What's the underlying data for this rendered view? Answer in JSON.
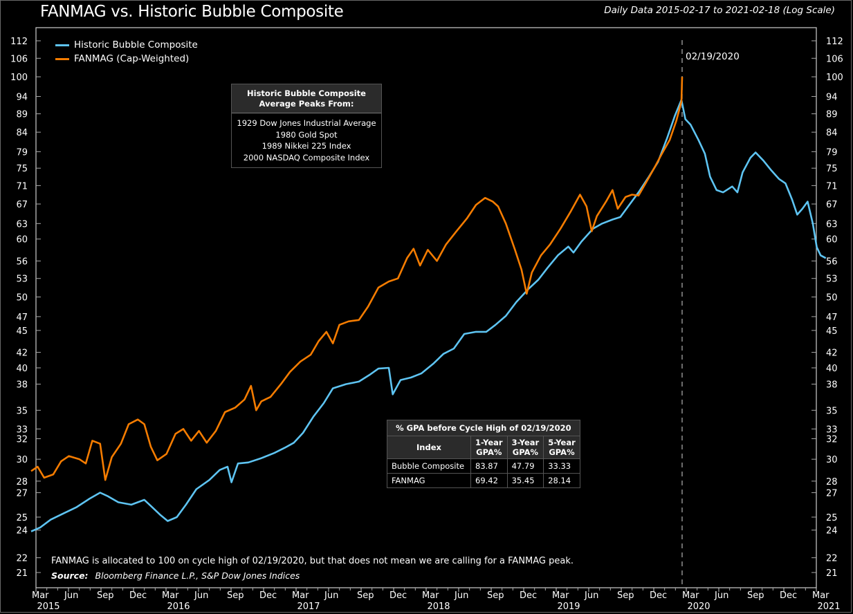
{
  "header": {
    "title": "FANMAG vs. Historic Bubble Composite",
    "subtitle": "Daily Data 2015-02-17 to 2021-02-18 (Log Scale)"
  },
  "legend": [
    {
      "label": "Historic Bubble Composite",
      "color": "#5ec4f2"
    },
    {
      "label": "FANMAG (Cap-Weighted)",
      "color": "#f57c00"
    }
  ],
  "annotation": {
    "peak_label": "02/19/2020"
  },
  "composite_box": {
    "heading_line1": "Historic Bubble Composite",
    "heading_line2": "Average Peaks From:",
    "items": [
      "1929 Dow Jones Industrial Average",
      "1980 Gold Spot",
      "1989 Nikkei 225 Index",
      "2000 NASDAQ Composite Index"
    ]
  },
  "gpa_table": {
    "caption": "% GPA before Cycle High of 02/19/2020",
    "headers": [
      {
        "line1": "Index",
        "line2": ""
      },
      {
        "line1": "1-Year",
        "line2": "GPA%"
      },
      {
        "line1": "3-Year",
        "line2": "GPA%"
      },
      {
        "line1": "5-Year",
        "line2": "GPA%"
      }
    ],
    "rows": [
      [
        "Bubble Composite",
        "83.87",
        "47.79",
        "33.33"
      ],
      [
        "FANMAG",
        "69.42",
        "35.45",
        "28.14"
      ]
    ]
  },
  "footer": {
    "note": "FANMAG is allocated to 100 on cycle high of 02/19/2020, but that does not mean we are calling for a FANMAG peak.",
    "source_label": "Source:",
    "source_text": "Bloomberg Finance L.P., S&P Dow Jones Indices"
  },
  "chart_data": {
    "type": "line",
    "title": "FANMAG vs. Historic Bubble Composite",
    "subtitle": "Daily Data 2015-02-17 to 2021-02-18 (Log Scale)",
    "xlabel": "",
    "ylabel": "",
    "y_scale": "log",
    "ylim": [
      20.3,
      116
    ],
    "y_ticks": [
      21,
      22,
      24,
      25,
      27,
      28,
      30,
      32,
      33,
      35,
      38,
      40,
      42,
      45,
      47,
      50,
      53,
      56,
      60,
      63,
      67,
      71,
      75,
      79,
      84,
      89,
      94,
      100,
      106,
      112
    ],
    "x_range": [
      2015.167,
      2021.167
    ],
    "x_ticks": [
      {
        "t": 2015.167,
        "label": "Mar",
        "year": "2015"
      },
      {
        "t": 2015.417,
        "label": "Jun",
        "year": ""
      },
      {
        "t": 2015.667,
        "label": "Sep",
        "year": ""
      },
      {
        "t": 2015.917,
        "label": "Dec",
        "year": ""
      },
      {
        "t": 2016.167,
        "label": "Mar",
        "year": "2016"
      },
      {
        "t": 2016.417,
        "label": "Jun",
        "year": ""
      },
      {
        "t": 2016.667,
        "label": "Sep",
        "year": ""
      },
      {
        "t": 2016.917,
        "label": "Dec",
        "year": ""
      },
      {
        "t": 2017.167,
        "label": "Mar",
        "year": "2017"
      },
      {
        "t": 2017.417,
        "label": "Jun",
        "year": ""
      },
      {
        "t": 2017.667,
        "label": "Sep",
        "year": ""
      },
      {
        "t": 2017.917,
        "label": "Dec",
        "year": ""
      },
      {
        "t": 2018.167,
        "label": "Mar",
        "year": "2018"
      },
      {
        "t": 2018.417,
        "label": "Jun",
        "year": ""
      },
      {
        "t": 2018.667,
        "label": "Sep",
        "year": ""
      },
      {
        "t": 2018.917,
        "label": "Dec",
        "year": ""
      },
      {
        "t": 2019.167,
        "label": "Mar",
        "year": "2019"
      },
      {
        "t": 2019.417,
        "label": "Jun",
        "year": ""
      },
      {
        "t": 2019.667,
        "label": "Sep",
        "year": ""
      },
      {
        "t": 2019.917,
        "label": "Dec",
        "year": ""
      },
      {
        "t": 2020.167,
        "label": "Mar",
        "year": "2020"
      },
      {
        "t": 2020.417,
        "label": "Jun",
        "year": ""
      },
      {
        "t": 2020.667,
        "label": "Sep",
        "year": ""
      },
      {
        "t": 2020.917,
        "label": "Dec",
        "year": ""
      },
      {
        "t": 2021.167,
        "label": "Mar",
        "year": "2021"
      }
    ],
    "peak_date_t": 2020.135,
    "legend_position": "top-left",
    "grid": false,
    "series": [
      {
        "name": "Historic Bubble Composite",
        "color": "#5ec4f2",
        "points": [
          [
            2015.13,
            23.9
          ],
          [
            2015.2,
            24.2
          ],
          [
            2015.28,
            24.8
          ],
          [
            2015.38,
            25.3
          ],
          [
            2015.48,
            25.8
          ],
          [
            2015.58,
            26.5
          ],
          [
            2015.66,
            27.0
          ],
          [
            2015.72,
            26.7
          ],
          [
            2015.8,
            26.2
          ],
          [
            2015.9,
            26.0
          ],
          [
            2016.0,
            26.4
          ],
          [
            2016.05,
            25.9
          ],
          [
            2016.12,
            25.2
          ],
          [
            2016.18,
            24.7
          ],
          [
            2016.25,
            25.0
          ],
          [
            2016.32,
            26.0
          ],
          [
            2016.4,
            27.3
          ],
          [
            2016.5,
            28.1
          ],
          [
            2016.58,
            29.0
          ],
          [
            2016.64,
            29.3
          ],
          [
            2016.67,
            27.9
          ],
          [
            2016.72,
            29.6
          ],
          [
            2016.8,
            29.7
          ],
          [
            2016.9,
            30.1
          ],
          [
            2017.0,
            30.6
          ],
          [
            2017.08,
            31.1
          ],
          [
            2017.15,
            31.6
          ],
          [
            2017.22,
            32.6
          ],
          [
            2017.3,
            34.3
          ],
          [
            2017.38,
            35.8
          ],
          [
            2017.45,
            37.5
          ],
          [
            2017.55,
            38.0
          ],
          [
            2017.65,
            38.3
          ],
          [
            2017.73,
            39.1
          ],
          [
            2017.8,
            39.9
          ],
          [
            2017.88,
            40.0
          ],
          [
            2017.91,
            36.8
          ],
          [
            2017.97,
            38.5
          ],
          [
            2018.05,
            38.8
          ],
          [
            2018.13,
            39.3
          ],
          [
            2018.22,
            40.5
          ],
          [
            2018.3,
            41.8
          ],
          [
            2018.38,
            42.5
          ],
          [
            2018.46,
            44.5
          ],
          [
            2018.55,
            44.8
          ],
          [
            2018.63,
            44.8
          ],
          [
            2018.7,
            45.8
          ],
          [
            2018.78,
            47.1
          ],
          [
            2018.86,
            49.2
          ],
          [
            2018.95,
            51.2
          ],
          [
            2019.03,
            52.8
          ],
          [
            2019.1,
            54.8
          ],
          [
            2019.18,
            57.0
          ],
          [
            2019.26,
            58.6
          ],
          [
            2019.3,
            57.5
          ],
          [
            2019.36,
            59.5
          ],
          [
            2019.45,
            62.0
          ],
          [
            2019.52,
            63.0
          ],
          [
            2019.6,
            63.8
          ],
          [
            2019.66,
            64.3
          ],
          [
            2019.72,
            66.5
          ],
          [
            2019.8,
            69.5
          ],
          [
            2019.88,
            73.0
          ],
          [
            2019.95,
            76.5
          ],
          [
            2020.02,
            82.5
          ],
          [
            2020.08,
            88.5
          ],
          [
            2020.13,
            93.0
          ],
          [
            2020.16,
            87.5
          ],
          [
            2020.2,
            86.0
          ],
          [
            2020.26,
            82.0
          ],
          [
            2020.31,
            78.5
          ],
          [
            2020.35,
            73.0
          ],
          [
            2020.4,
            70.0
          ],
          [
            2020.45,
            69.5
          ],
          [
            2020.52,
            70.8
          ],
          [
            2020.56,
            69.5
          ],
          [
            2020.6,
            74.0
          ],
          [
            2020.66,
            77.5
          ],
          [
            2020.7,
            78.8
          ],
          [
            2020.76,
            76.8
          ],
          [
            2020.82,
            74.5
          ],
          [
            2020.88,
            72.5
          ],
          [
            2020.93,
            71.5
          ],
          [
            2020.98,
            68.0
          ],
          [
            2021.02,
            64.8
          ],
          [
            2021.06,
            66.0
          ],
          [
            2021.1,
            67.5
          ],
          [
            2021.14,
            63.0
          ],
          [
            2021.17,
            58.5
          ],
          [
            2021.2,
            57.0
          ],
          [
            2021.24,
            56.5
          ]
        ]
      },
      {
        "name": "FANMAG (Cap-Weighted)",
        "color": "#f57c00",
        "points": [
          [
            2015.13,
            28.9
          ],
          [
            2015.18,
            29.3
          ],
          [
            2015.23,
            28.3
          ],
          [
            2015.3,
            28.6
          ],
          [
            2015.36,
            29.8
          ],
          [
            2015.42,
            30.3
          ],
          [
            2015.5,
            30.0
          ],
          [
            2015.55,
            29.6
          ],
          [
            2015.6,
            31.8
          ],
          [
            2015.66,
            31.5
          ],
          [
            2015.7,
            28.1
          ],
          [
            2015.75,
            30.2
          ],
          [
            2015.82,
            31.5
          ],
          [
            2015.88,
            33.5
          ],
          [
            2015.95,
            34.0
          ],
          [
            2016.0,
            33.5
          ],
          [
            2016.05,
            31.2
          ],
          [
            2016.1,
            29.9
          ],
          [
            2016.17,
            30.5
          ],
          [
            2016.24,
            32.5
          ],
          [
            2016.3,
            33.0
          ],
          [
            2016.36,
            31.8
          ],
          [
            2016.42,
            32.8
          ],
          [
            2016.48,
            31.6
          ],
          [
            2016.55,
            32.8
          ],
          [
            2016.62,
            34.8
          ],
          [
            2016.7,
            35.3
          ],
          [
            2016.77,
            36.2
          ],
          [
            2016.82,
            37.8
          ],
          [
            2016.86,
            35.0
          ],
          [
            2016.9,
            36.0
          ],
          [
            2016.97,
            36.5
          ],
          [
            2017.05,
            38.0
          ],
          [
            2017.12,
            39.5
          ],
          [
            2017.2,
            40.8
          ],
          [
            2017.28,
            41.7
          ],
          [
            2017.34,
            43.5
          ],
          [
            2017.4,
            44.8
          ],
          [
            2017.45,
            43.2
          ],
          [
            2017.5,
            45.8
          ],
          [
            2017.57,
            46.3
          ],
          [
            2017.65,
            46.5
          ],
          [
            2017.72,
            48.5
          ],
          [
            2017.8,
            51.5
          ],
          [
            2017.88,
            52.5
          ],
          [
            2017.95,
            53.0
          ],
          [
            2018.02,
            56.5
          ],
          [
            2018.07,
            58.2
          ],
          [
            2018.12,
            55.2
          ],
          [
            2018.18,
            58.0
          ],
          [
            2018.25,
            56.0
          ],
          [
            2018.32,
            59.0
          ],
          [
            2018.4,
            61.5
          ],
          [
            2018.48,
            64.0
          ],
          [
            2018.55,
            66.8
          ],
          [
            2018.62,
            68.3
          ],
          [
            2018.68,
            67.5
          ],
          [
            2018.72,
            66.5
          ],
          [
            2018.78,
            63.0
          ],
          [
            2018.85,
            58.0
          ],
          [
            2018.9,
            54.5
          ],
          [
            2018.94,
            50.5
          ],
          [
            2018.98,
            54.0
          ],
          [
            2019.05,
            57.0
          ],
          [
            2019.12,
            59.0
          ],
          [
            2019.2,
            62.0
          ],
          [
            2019.28,
            65.5
          ],
          [
            2019.35,
            69.0
          ],
          [
            2019.4,
            66.5
          ],
          [
            2019.44,
            61.5
          ],
          [
            2019.48,
            64.5
          ],
          [
            2019.55,
            67.5
          ],
          [
            2019.6,
            70.0
          ],
          [
            2019.64,
            66.0
          ],
          [
            2019.7,
            68.5
          ],
          [
            2019.75,
            69.0
          ],
          [
            2019.8,
            68.8
          ],
          [
            2019.86,
            71.8
          ],
          [
            2019.92,
            75.0
          ],
          [
            2019.98,
            78.5
          ],
          [
            2020.04,
            82.0
          ],
          [
            2020.09,
            87.0
          ],
          [
            2020.13,
            92.5
          ],
          [
            2020.135,
            100.0
          ]
        ]
      }
    ]
  }
}
